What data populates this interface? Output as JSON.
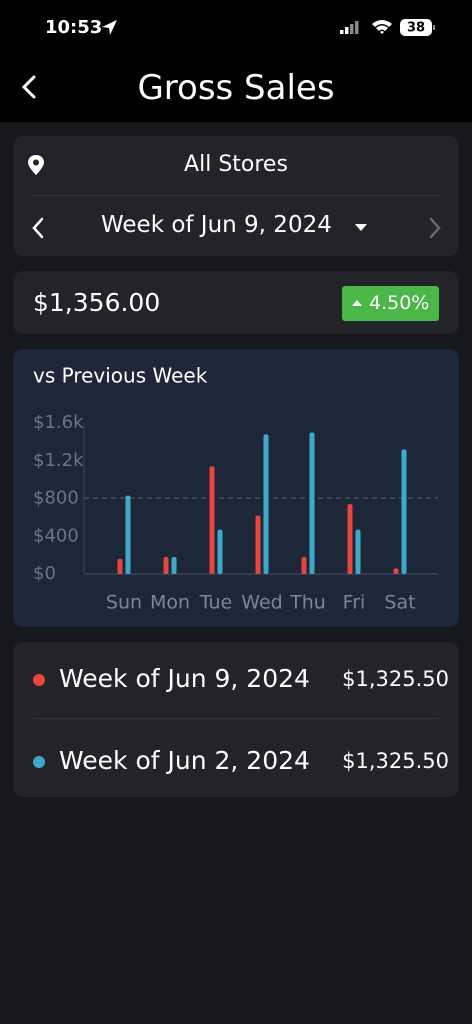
{
  "status_bar": {
    "time": "10:53",
    "battery": "38"
  },
  "header": {
    "title": "Gross Sales"
  },
  "filters": {
    "store": "All Stores",
    "week": "Week of Jun 9, 2024"
  },
  "summary": {
    "total": "$1,356.00",
    "change": "4.50%"
  },
  "chart_data": {
    "type": "bar",
    "title": "vs Previous Week",
    "categories": [
      "Sun",
      "Mon",
      "Tue",
      "Wed",
      "Thu",
      "Fri",
      "Sat"
    ],
    "series": [
      {
        "name": "Week of Jun 9, 2024",
        "color": "#e8453c",
        "values": [
          160,
          180,
          1140,
          620,
          180,
          740,
          60
        ]
      },
      {
        "name": "Week of Jun 2, 2024",
        "color": "#3fa9c9",
        "values": [
          830,
          180,
          470,
          1480,
          1500,
          470,
          1320
        ]
      }
    ],
    "ylim": [
      0,
      1600
    ],
    "yticks": [
      {
        "value": 0,
        "label": "$0"
      },
      {
        "value": 400,
        "label": "$400"
      },
      {
        "value": 800,
        "label": "$800"
      },
      {
        "value": 1200,
        "label": "$1.2k"
      },
      {
        "value": 1600,
        "label": "$1.6k"
      }
    ]
  },
  "legend_totals": [
    "$1,325.50",
    "$1,325.50"
  ]
}
